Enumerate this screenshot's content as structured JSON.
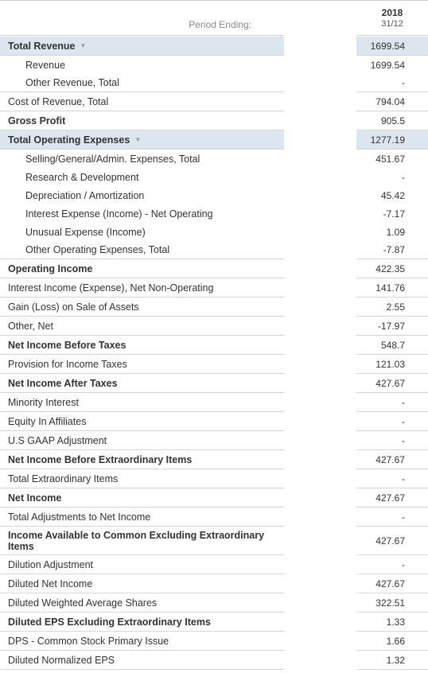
{
  "header": {
    "period_label": "Period Ending:",
    "year": "2018",
    "date": "31/12"
  },
  "rows": [
    {
      "label": "Total Revenue",
      "value": "1699.54",
      "bold": true,
      "highlight": true,
      "expand": true,
      "indent": false,
      "h": 24,
      "line": true
    },
    {
      "label": "Revenue",
      "value": "1699.54",
      "bold": false,
      "highlight": false,
      "expand": false,
      "indent": true,
      "h": 23,
      "line": false
    },
    {
      "label": "Other Revenue, Total",
      "value": "-",
      "bold": false,
      "highlight": false,
      "expand": false,
      "indent": true,
      "h": 23,
      "line": true
    },
    {
      "label": "Cost of Revenue, Total",
      "value": "794.04",
      "bold": false,
      "highlight": false,
      "expand": false,
      "indent": false,
      "h": 24,
      "line": true
    },
    {
      "label": "Gross Profit",
      "value": "905.5",
      "bold": true,
      "highlight": false,
      "expand": false,
      "indent": false,
      "h": 24,
      "line": true
    },
    {
      "label": "Total Operating Expenses",
      "value": "1277.19",
      "bold": true,
      "highlight": true,
      "expand": true,
      "indent": false,
      "h": 24,
      "line": true
    },
    {
      "label": "Selling/General/Admin. Expenses, Total",
      "value": "451.67",
      "bold": false,
      "highlight": false,
      "expand": false,
      "indent": true,
      "h": 23,
      "line": false
    },
    {
      "label": "Research & Development",
      "value": "-",
      "bold": false,
      "highlight": false,
      "expand": false,
      "indent": true,
      "h": 23,
      "line": false
    },
    {
      "label": "Depreciation / Amortization",
      "value": "45.42",
      "bold": false,
      "highlight": false,
      "expand": false,
      "indent": true,
      "h": 23,
      "line": false
    },
    {
      "label": "Interest Expense (Income) - Net Operating",
      "value": "-7.17",
      "bold": false,
      "highlight": false,
      "expand": false,
      "indent": true,
      "h": 23,
      "line": false
    },
    {
      "label": "Unusual Expense (Income)",
      "value": "1.09",
      "bold": false,
      "highlight": false,
      "expand": false,
      "indent": true,
      "h": 23,
      "line": false
    },
    {
      "label": "Other Operating Expenses, Total",
      "value": "-7.87",
      "bold": false,
      "highlight": false,
      "expand": false,
      "indent": true,
      "h": 23,
      "line": true
    },
    {
      "label": "Operating Income",
      "value": "422.35",
      "bold": true,
      "highlight": false,
      "expand": false,
      "indent": false,
      "h": 24,
      "line": true
    },
    {
      "label": "Interest Income (Expense), Net Non-Operating",
      "value": "141.76",
      "bold": false,
      "highlight": false,
      "expand": false,
      "indent": false,
      "h": 24,
      "line": true
    },
    {
      "label": "Gain (Loss) on Sale of Assets",
      "value": "2.55",
      "bold": false,
      "highlight": false,
      "expand": false,
      "indent": false,
      "h": 24,
      "line": true
    },
    {
      "label": "Other, Net",
      "value": "-17.97",
      "bold": false,
      "highlight": false,
      "expand": false,
      "indent": false,
      "h": 24,
      "line": true
    },
    {
      "label": "Net Income Before Taxes",
      "value": "548.7",
      "bold": true,
      "highlight": false,
      "expand": false,
      "indent": false,
      "h": 24,
      "line": true
    },
    {
      "label": "Provision for Income Taxes",
      "value": "121.03",
      "bold": false,
      "highlight": false,
      "expand": false,
      "indent": false,
      "h": 24,
      "line": true
    },
    {
      "label": "Net Income After Taxes",
      "value": "427.67",
      "bold": true,
      "highlight": false,
      "expand": false,
      "indent": false,
      "h": 24,
      "line": true
    },
    {
      "label": "Minority Interest",
      "value": "-",
      "bold": false,
      "highlight": false,
      "expand": false,
      "indent": false,
      "h": 24,
      "line": true
    },
    {
      "label": "Equity In Affiliates",
      "value": "-",
      "bold": false,
      "highlight": false,
      "expand": false,
      "indent": false,
      "h": 24,
      "line": true
    },
    {
      "label": "U.S GAAP Adjustment",
      "value": "-",
      "bold": false,
      "highlight": false,
      "expand": false,
      "indent": false,
      "h": 24,
      "line": true
    },
    {
      "label": "Net Income Before Extraordinary Items",
      "value": "427.67",
      "bold": true,
      "highlight": false,
      "expand": false,
      "indent": false,
      "h": 24,
      "line": true
    },
    {
      "label": "Total Extraordinary Items",
      "value": "-",
      "bold": false,
      "highlight": false,
      "expand": false,
      "indent": false,
      "h": 24,
      "line": true
    },
    {
      "label": "Net Income",
      "value": "427.67",
      "bold": true,
      "highlight": false,
      "expand": false,
      "indent": false,
      "h": 24,
      "line": true
    },
    {
      "label": "Total Adjustments to Net Income",
      "value": "-",
      "bold": false,
      "highlight": false,
      "expand": false,
      "indent": false,
      "h": 24,
      "line": true
    },
    {
      "label": "Income Available to Common Excluding Extraordinary Items",
      "value": "427.67",
      "bold": true,
      "highlight": false,
      "expand": false,
      "indent": false,
      "h": 36,
      "line": true
    },
    {
      "label": "Dilution Adjustment",
      "value": "-",
      "bold": false,
      "highlight": false,
      "expand": false,
      "indent": false,
      "h": 24,
      "line": true
    },
    {
      "label": "Diluted Net Income",
      "value": "427.67",
      "bold": false,
      "highlight": false,
      "expand": false,
      "indent": false,
      "h": 24,
      "line": true
    },
    {
      "label": "Diluted Weighted Average Shares",
      "value": "322.51",
      "bold": false,
      "highlight": false,
      "expand": false,
      "indent": false,
      "h": 24,
      "line": true
    },
    {
      "label": "Diluted EPS Excluding Extraordinary Items",
      "value": "1.33",
      "bold": true,
      "highlight": false,
      "expand": false,
      "indent": false,
      "h": 24,
      "line": true
    },
    {
      "label": "DPS - Common Stock Primary Issue",
      "value": "1.66",
      "bold": false,
      "highlight": false,
      "expand": false,
      "indent": false,
      "h": 24,
      "line": true
    },
    {
      "label": "Diluted Normalized EPS",
      "value": "1.32",
      "bold": false,
      "highlight": false,
      "expand": false,
      "indent": false,
      "h": 24,
      "line": true
    }
  ]
}
